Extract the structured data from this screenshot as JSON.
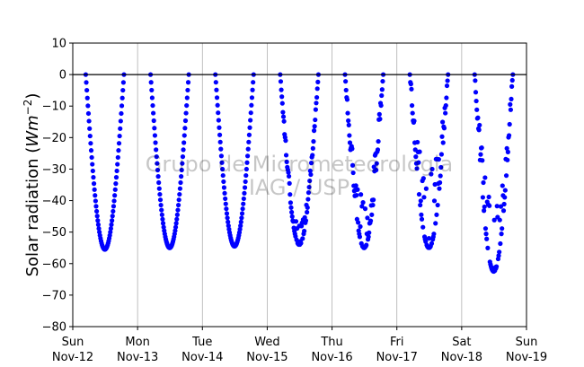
{
  "chart_data": {
    "type": "scatter",
    "ylabel_main": "Solar radiation (",
    "ylabel_unit": "Wm",
    "ylabel_exp": "−2",
    "ylabel_close": ")",
    "ylim": [
      -80,
      10
    ],
    "y_ticks": [
      10,
      0,
      -10,
      -20,
      -30,
      -40,
      -50,
      -60,
      -70,
      -80
    ],
    "y_tick_labels": [
      "10",
      "0",
      "−10",
      "−20",
      "−30",
      "−40",
      "−50",
      "−60",
      "−70",
      "−80"
    ],
    "x_range_days": [
      0,
      7
    ],
    "x_ticks": [
      {
        "day": 0,
        "dow": "Sun",
        "date": "Nov-12"
      },
      {
        "day": 1,
        "dow": "Mon",
        "date": "Nov-13"
      },
      {
        "day": 2,
        "dow": "Tue",
        "date": "Nov-14"
      },
      {
        "day": 3,
        "dow": "Wed",
        "date": "Nov-15"
      },
      {
        "day": 4,
        "dow": "Thu",
        "date": "Nov-16"
      },
      {
        "day": 5,
        "dow": "Fri",
        "date": "Nov-17"
      },
      {
        "day": 6,
        "dow": "Sat",
        "date": "Nov-18"
      },
      {
        "day": 7,
        "dow": "Sun",
        "date": "Nov-19"
      }
    ],
    "grid_x": true,
    "grid_y": false,
    "zero_line": true,
    "marker_color": "#0000ff",
    "watermark_line1": "Grupo de Micrometeorologia",
    "watermark_line2": "IAG / USP",
    "daily_series": [
      {
        "date": "Nov-12",
        "sunrise_frac": 0.2,
        "sunset_frac": 0.79,
        "min": -55.5,
        "noise": 0,
        "seed": 11
      },
      {
        "date": "Nov-13",
        "sunrise_frac": 0.2,
        "sunset_frac": 0.79,
        "min": -55.0,
        "noise": 0,
        "seed": 12
      },
      {
        "date": "Nov-14",
        "sunrise_frac": 0.2,
        "sunset_frac": 0.79,
        "min": -54.5,
        "noise": 0,
        "seed": 13
      },
      {
        "date": "Nov-15",
        "sunrise_frac": 0.2,
        "sunset_frac": 0.79,
        "min": -54.0,
        "noise": 6,
        "seed": 14
      },
      {
        "date": "Nov-16",
        "sunrise_frac": 0.2,
        "sunset_frac": 0.79,
        "min": -55.0,
        "noise": 16,
        "seed": 15
      },
      {
        "date": "Nov-17",
        "sunrise_frac": 0.2,
        "sunset_frac": 0.79,
        "min": -55.0,
        "noise": 24,
        "seed": 16
      },
      {
        "date": "Nov-18",
        "sunrise_frac": 0.2,
        "sunset_frac": 0.79,
        "min": -62.5,
        "noise": 22,
        "seed": 17
      }
    ]
  }
}
